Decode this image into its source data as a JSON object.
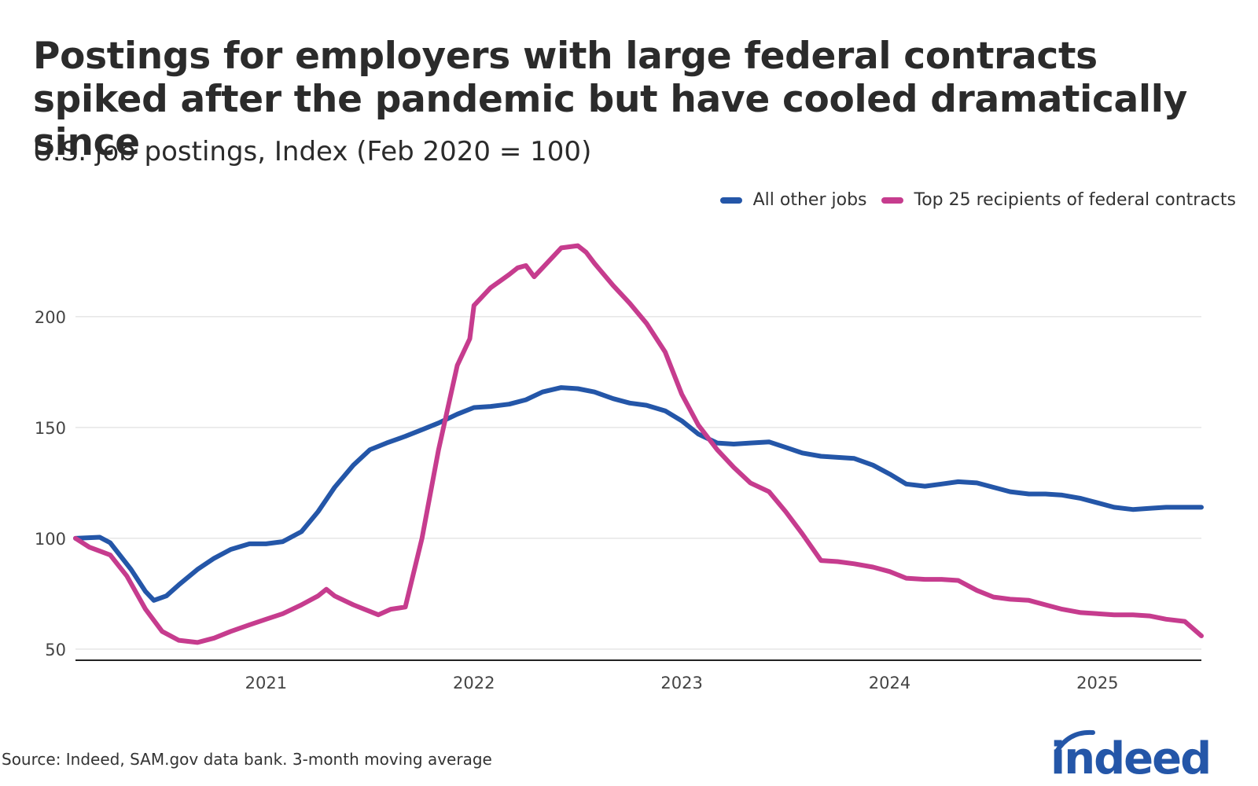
{
  "title": "Postings for employers with large federal contracts spiked after the pandemic but have cooled dramatically since",
  "subtitle": "U.S. job postings, Index (Feb 2020 = 100)",
  "source": "Source: Indeed, SAM.gov data bank. 3-month moving average",
  "logo_text": "indeed",
  "colors": {
    "other": "#2456a8",
    "federal": "#c63c8e",
    "logo": "#2456a8",
    "grid": "#d9d9d9",
    "axis": "#222222"
  },
  "chart_data": {
    "type": "line",
    "title": "Postings for employers with large federal contracts spiked after the pandemic but have cooled dramatically since",
    "subtitle": "U.S. job postings, Index (Feb 2020 = 100)",
    "xlabel": "",
    "ylabel": "",
    "xlim": [
      2020.083,
      2025.5
    ],
    "ylim": [
      45,
      240
    ],
    "yticks": [
      50,
      100,
      150,
      200
    ],
    "xticks": [
      {
        "value": 2021,
        "label": "2021"
      },
      {
        "value": 2022,
        "label": "2022"
      },
      {
        "value": 2023,
        "label": "2023"
      },
      {
        "value": 2024,
        "label": "2024"
      },
      {
        "value": 2025,
        "label": "2025"
      }
    ],
    "grid": true,
    "legend_position": "top-right",
    "series": [
      {
        "key": "other",
        "name": "All other jobs",
        "points": [
          [
            2020.083,
            100
          ],
          [
            2020.2,
            100.5
          ],
          [
            2020.25,
            98
          ],
          [
            2020.35,
            86
          ],
          [
            2020.42,
            76
          ],
          [
            2020.46,
            72
          ],
          [
            2020.52,
            74
          ],
          [
            2020.58,
            79
          ],
          [
            2020.67,
            86
          ],
          [
            2020.75,
            91
          ],
          [
            2020.83,
            95
          ],
          [
            2020.92,
            97.5
          ],
          [
            2021.0,
            97.5
          ],
          [
            2021.08,
            98.5
          ],
          [
            2021.17,
            103
          ],
          [
            2021.25,
            112
          ],
          [
            2021.33,
            123
          ],
          [
            2021.42,
            133
          ],
          [
            2021.5,
            140
          ],
          [
            2021.58,
            143
          ],
          [
            2021.67,
            146
          ],
          [
            2021.75,
            149
          ],
          [
            2021.83,
            152
          ],
          [
            2021.92,
            156
          ],
          [
            2022.0,
            159
          ],
          [
            2022.08,
            159.5
          ],
          [
            2022.17,
            160.5
          ],
          [
            2022.25,
            162.5
          ],
          [
            2022.33,
            166
          ],
          [
            2022.42,
            168
          ],
          [
            2022.5,
            167.5
          ],
          [
            2022.58,
            166
          ],
          [
            2022.67,
            163
          ],
          [
            2022.75,
            161
          ],
          [
            2022.83,
            160
          ],
          [
            2022.92,
            157.5
          ],
          [
            2023.0,
            153
          ],
          [
            2023.08,
            147
          ],
          [
            2023.17,
            143
          ],
          [
            2023.25,
            142.5
          ],
          [
            2023.33,
            143
          ],
          [
            2023.42,
            143.5
          ],
          [
            2023.5,
            141
          ],
          [
            2023.58,
            138.5
          ],
          [
            2023.67,
            137
          ],
          [
            2023.75,
            136.5
          ],
          [
            2023.83,
            136
          ],
          [
            2023.92,
            133
          ],
          [
            2024.0,
            129
          ],
          [
            2024.08,
            124.5
          ],
          [
            2024.17,
            123.5
          ],
          [
            2024.25,
            124.5
          ],
          [
            2024.33,
            125.5
          ],
          [
            2024.42,
            125
          ],
          [
            2024.5,
            123
          ],
          [
            2024.58,
            121
          ],
          [
            2024.67,
            120
          ],
          [
            2024.75,
            120
          ],
          [
            2024.83,
            119.5
          ],
          [
            2024.92,
            118
          ],
          [
            2025.0,
            116
          ],
          [
            2025.08,
            114
          ],
          [
            2025.17,
            113
          ],
          [
            2025.25,
            113.5
          ],
          [
            2025.33,
            114
          ],
          [
            2025.42,
            114
          ],
          [
            2025.5,
            114
          ]
        ]
      },
      {
        "key": "federal",
        "name": "Top 25 recipients of federal contracts",
        "points": [
          [
            2020.083,
            100
          ],
          [
            2020.15,
            96
          ],
          [
            2020.25,
            92.5
          ],
          [
            2020.33,
            83
          ],
          [
            2020.42,
            68
          ],
          [
            2020.5,
            58
          ],
          [
            2020.58,
            54
          ],
          [
            2020.67,
            53
          ],
          [
            2020.75,
            55
          ],
          [
            2020.83,
            58
          ],
          [
            2020.92,
            61
          ],
          [
            2021.0,
            63.5
          ],
          [
            2021.08,
            66
          ],
          [
            2021.17,
            70
          ],
          [
            2021.25,
            74
          ],
          [
            2021.29,
            77
          ],
          [
            2021.33,
            74
          ],
          [
            2021.42,
            70
          ],
          [
            2021.5,
            67
          ],
          [
            2021.54,
            65.5
          ],
          [
            2021.6,
            68
          ],
          [
            2021.67,
            69
          ],
          [
            2021.75,
            100
          ],
          [
            2021.83,
            140
          ],
          [
            2021.92,
            178
          ],
          [
            2021.98,
            190
          ],
          [
            2022.0,
            205
          ],
          [
            2022.08,
            213
          ],
          [
            2022.17,
            219
          ],
          [
            2022.21,
            222
          ],
          [
            2022.25,
            223
          ],
          [
            2022.29,
            218
          ],
          [
            2022.33,
            222
          ],
          [
            2022.42,
            231
          ],
          [
            2022.5,
            232
          ],
          [
            2022.54,
            229
          ],
          [
            2022.58,
            224
          ],
          [
            2022.67,
            214
          ],
          [
            2022.75,
            206
          ],
          [
            2022.83,
            197
          ],
          [
            2022.92,
            184
          ],
          [
            2023.0,
            165
          ],
          [
            2023.08,
            151
          ],
          [
            2023.17,
            140
          ],
          [
            2023.25,
            132
          ],
          [
            2023.33,
            125
          ],
          [
            2023.42,
            121
          ],
          [
            2023.5,
            112
          ],
          [
            2023.58,
            102
          ],
          [
            2023.67,
            90
          ],
          [
            2023.75,
            89.5
          ],
          [
            2023.83,
            88.5
          ],
          [
            2023.92,
            87
          ],
          [
            2024.0,
            85
          ],
          [
            2024.08,
            82
          ],
          [
            2024.17,
            81.5
          ],
          [
            2024.25,
            81.5
          ],
          [
            2024.33,
            81
          ],
          [
            2024.42,
            76.5
          ],
          [
            2024.5,
            73.5
          ],
          [
            2024.58,
            72.5
          ],
          [
            2024.67,
            72
          ],
          [
            2024.75,
            70
          ],
          [
            2024.83,
            68
          ],
          [
            2024.92,
            66.5
          ],
          [
            2025.0,
            66
          ],
          [
            2025.08,
            65.5
          ],
          [
            2025.17,
            65.5
          ],
          [
            2025.25,
            65
          ],
          [
            2025.33,
            63.5
          ],
          [
            2025.42,
            62.5
          ],
          [
            2025.5,
            56
          ]
        ]
      }
    ]
  }
}
